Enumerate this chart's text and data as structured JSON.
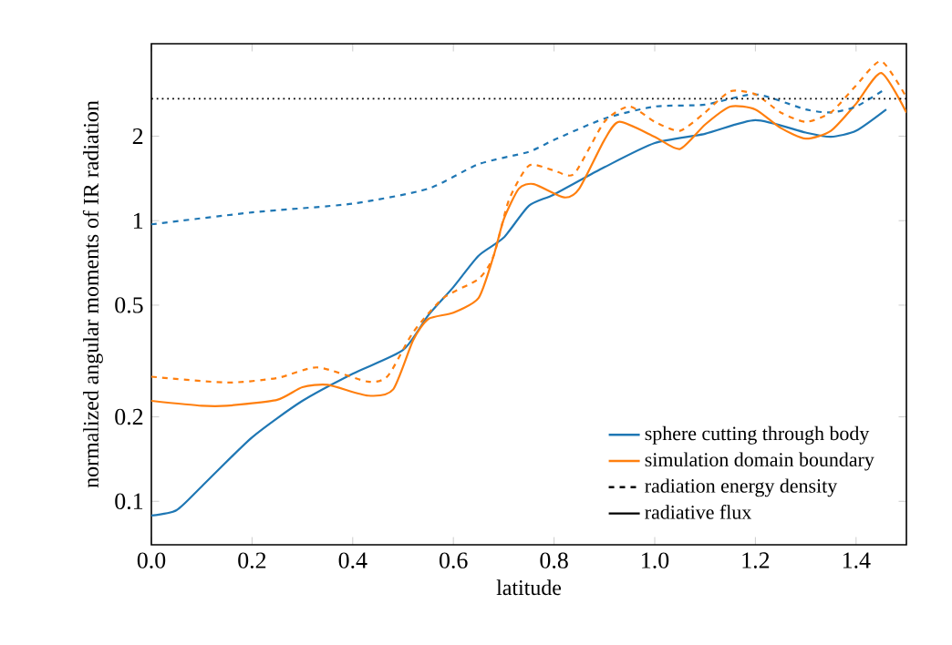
{
  "chart_data": {
    "type": "line",
    "xlabel": "latitude",
    "ylabel": "normalized angular moments of IR radiation",
    "xlim": [
      0,
      1.5
    ],
    "ylim": [
      0.07,
      4.27
    ],
    "log": "y",
    "xticks": [
      {
        "value": 0,
        "label": "0.0"
      },
      {
        "value": 0.2,
        "label": "0.2"
      },
      {
        "value": 0.4,
        "label": "0.4"
      },
      {
        "value": 0.6,
        "label": "0.6"
      },
      {
        "value": 0.8,
        "label": "0.8"
      },
      {
        "value": 1.0,
        "label": "1.0"
      },
      {
        "value": 1.2,
        "label": "1.2"
      },
      {
        "value": 1.4,
        "label": "1.4"
      }
    ],
    "yticks": [
      0.1,
      0.2,
      0.5,
      1,
      2
    ],
    "grid": false,
    "legend": "bottom right",
    "marker": "none",
    "series": [
      {
        "name": "sphere cutting through body",
        "color": "#1f77b4",
        "line_style": "solid",
        "x": [
          0,
          0.05,
          0.1,
          0.2,
          0.3,
          0.4,
          0.5,
          0.55,
          0.6,
          0.65,
          0.7,
          0.75,
          0.8,
          0.9,
          1.0,
          1.1,
          1.2,
          1.3,
          1.35,
          1.4,
          1.46
        ],
        "values": [
          0.089,
          0.093,
          0.113,
          0.169,
          0.228,
          0.285,
          0.346,
          0.46,
          0.58,
          0.75,
          0.87,
          1.13,
          1.24,
          1.55,
          1.89,
          2.04,
          2.28,
          2.06,
          1.99,
          2.09,
          2.49
        ]
      },
      {
        "name": "simulation domain boundary",
        "color": "#ff7f0e",
        "line_style": "solid",
        "x": [
          0,
          0.1,
          0.15,
          0.25,
          0.3,
          0.35,
          0.43,
          0.48,
          0.52,
          0.55,
          0.6,
          0.65,
          0.68,
          0.7,
          0.73,
          0.76,
          0.82,
          0.85,
          0.9,
          0.93,
          1.0,
          1.05,
          1.1,
          1.15,
          1.2,
          1.25,
          1.3,
          1.35,
          1.4,
          1.45,
          1.5
        ],
        "values": [
          0.228,
          0.219,
          0.219,
          0.23,
          0.255,
          0.26,
          0.238,
          0.25,
          0.375,
          0.446,
          0.47,
          0.53,
          0.75,
          1.01,
          1.3,
          1.35,
          1.21,
          1.3,
          1.94,
          2.25,
          1.99,
          1.8,
          2.2,
          2.55,
          2.49,
          2.14,
          1.96,
          2.09,
          2.61,
          3.36,
          2.43
        ]
      },
      {
        "color": "#1f77b4",
        "line_style": "dashed",
        "x": [
          0,
          0.2,
          0.4,
          0.55,
          0.65,
          0.75,
          0.8,
          0.9,
          1.0,
          1.1,
          1.2,
          1.3,
          1.35,
          1.4,
          1.46
        ],
        "values": [
          0.97,
          1.07,
          1.15,
          1.3,
          1.59,
          1.76,
          1.94,
          2.31,
          2.55,
          2.59,
          2.82,
          2.49,
          2.43,
          2.55,
          2.96
        ]
      },
      {
        "color": "#ff7f0e",
        "line_style": "dashed",
        "x": [
          0,
          0.15,
          0.25,
          0.33,
          0.43,
          0.47,
          0.52,
          0.58,
          0.65,
          0.68,
          0.71,
          0.75,
          0.8,
          0.84,
          0.9,
          0.95,
          1.0,
          1.05,
          1.1,
          1.15,
          1.2,
          1.25,
          1.3,
          1.35,
          1.4,
          1.45,
          1.5
        ],
        "values": [
          0.278,
          0.265,
          0.275,
          0.3,
          0.267,
          0.28,
          0.4,
          0.53,
          0.62,
          0.75,
          1.18,
          1.57,
          1.51,
          1.47,
          2.25,
          2.55,
          2.25,
          2.09,
          2.43,
          2.89,
          2.82,
          2.43,
          2.25,
          2.43,
          3.03,
          3.7,
          2.75
        ]
      }
    ],
    "ref_lines": [
      {
        "axis": "y",
        "value": 2.72,
        "color": "#000000",
        "line_style": "dotted"
      }
    ],
    "annotations": [
      "radiation energy density",
      "radiative flux"
    ]
  }
}
